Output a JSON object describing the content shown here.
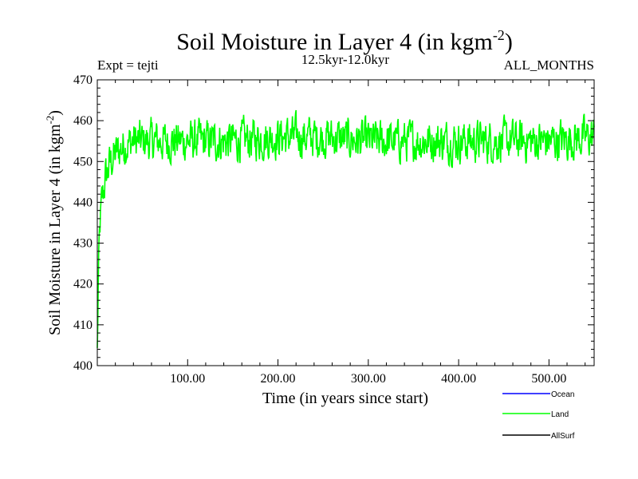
{
  "chart_data": {
    "type": "line",
    "title": {
      "main": "Soil Moisture in Layer 4 (in kgm",
      "sup": "-2",
      "close": ")"
    },
    "expt_label": "Expt = tejti",
    "period_label": "12.5kyr-12.0kyr",
    "months_label": "ALL_MONTHS",
    "xlabel": "Time (in years since start)",
    "ylabel": {
      "main": "Soil Moisture in Layer 4 (in kgm",
      "sup": "-2",
      "close": ")"
    },
    "xlim": [
      0,
      550
    ],
    "ylim": [
      400,
      470
    ],
    "x_ticks": [
      100,
      200,
      300,
      400,
      500
    ],
    "x_tick_labels": [
      "100.00",
      "200.00",
      "300.00",
      "400.00",
      "500.00"
    ],
    "y_ticks": [
      400,
      410,
      420,
      430,
      440,
      450,
      460,
      470
    ],
    "y_tick_labels": [
      "400",
      "410",
      "420",
      "430",
      "440",
      "450",
      "460",
      "470"
    ],
    "grid": false,
    "legend_position": "bottom-right",
    "legend": [
      {
        "name": "Ocean",
        "color": "#0000ff"
      },
      {
        "name": "Land",
        "color": "#00ff00"
      },
      {
        "name": "AllSurf",
        "color": "#000000"
      }
    ],
    "series": [
      {
        "name": "Land",
        "color": "#00ff00",
        "x": [
          0,
          1,
          2,
          3,
          5,
          7,
          9,
          11,
          13,
          15,
          18,
          21,
          25,
          30,
          40,
          60,
          100,
          150,
          200,
          250,
          300,
          350,
          400,
          450,
          500,
          550
        ],
        "y": [
          403,
          418,
          428,
          434,
          440,
          443,
          446,
          447,
          449,
          450,
          451,
          452,
          453,
          454,
          455,
          455,
          455,
          455,
          456,
          456,
          455,
          455,
          455,
          455,
          455,
          456
        ]
      }
    ]
  }
}
